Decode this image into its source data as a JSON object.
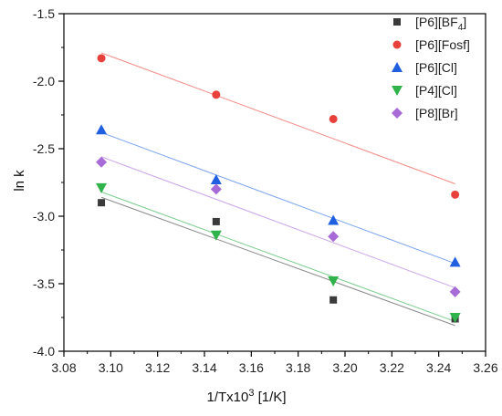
{
  "chart_data": {
    "type": "scatter",
    "xlabel_main": "1/Tx10",
    "xlabel_sup": "3",
    "xlabel_unit": " [1/K]",
    "ylabel": "ln k",
    "xlim": [
      3.08,
      3.26
    ],
    "ylim": [
      -4.0,
      -1.5
    ],
    "x_ticks": [
      3.08,
      3.1,
      3.12,
      3.14,
      3.16,
      3.18,
      3.2,
      3.22,
      3.24,
      3.26
    ],
    "y_ticks": [
      -4.0,
      -3.5,
      -3.0,
      -2.5,
      -2.0,
      -1.5
    ],
    "grid": false,
    "legend_position": "top-right",
    "series": [
      {
        "name_main": "[P6][BF",
        "name_sub": "4",
        "name_end": "]",
        "marker": "square",
        "color": "#3a3a3a",
        "line_color": "#8a8a8a",
        "x": [
          3.096,
          3.145,
          3.195,
          3.247
        ],
        "y": [
          -2.9,
          -3.04,
          -3.62,
          -3.76
        ],
        "fit": [
          [
            3.096,
            -2.86
          ],
          [
            3.247,
            -3.81
          ]
        ]
      },
      {
        "name": "[P6][Fosf]",
        "marker": "circle",
        "color": "#e8413c",
        "line_color": "#f28b86",
        "x": [
          3.096,
          3.145,
          3.195,
          3.247
        ],
        "y": [
          -1.83,
          -2.1,
          -2.28,
          -2.84
        ],
        "fit": [
          [
            3.096,
            -1.79
          ],
          [
            3.247,
            -2.76
          ]
        ]
      },
      {
        "name": "[P6][Cl]",
        "marker": "triangle-up",
        "color": "#1f5fe0",
        "line_color": "#7aa4ec",
        "x": [
          3.096,
          3.145,
          3.195,
          3.247
        ],
        "y": [
          -2.36,
          -2.73,
          -3.03,
          -3.34
        ],
        "fit": [
          [
            3.096,
            -2.38
          ],
          [
            3.247,
            -3.35
          ]
        ]
      },
      {
        "name": "[P4][Cl]",
        "marker": "triangle-down",
        "color": "#2fb34a",
        "line_color": "#7ccc8d",
        "x": [
          3.096,
          3.145,
          3.195,
          3.247
        ],
        "y": [
          -2.79,
          -3.14,
          -3.48,
          -3.75
        ],
        "fit": [
          [
            3.096,
            -2.82
          ],
          [
            3.247,
            -3.78
          ]
        ]
      },
      {
        "name": "[P8][Br]",
        "marker": "diamond",
        "color": "#a66bd6",
        "line_color": "#c9a5e8",
        "x": [
          3.096,
          3.145,
          3.195,
          3.247
        ],
        "y": [
          -2.6,
          -2.8,
          -3.15,
          -3.56
        ],
        "fit": [
          [
            3.096,
            -2.56
          ],
          [
            3.247,
            -3.53
          ]
        ]
      }
    ]
  }
}
